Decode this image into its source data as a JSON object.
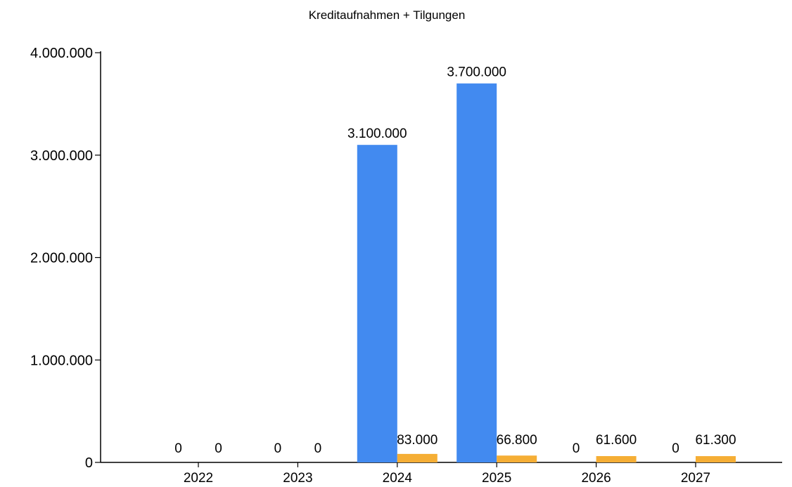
{
  "chart_data": {
    "type": "bar",
    "title": "Kreditaufnahmen + Tilgungen",
    "xlabel": "",
    "ylabel": "",
    "categories": [
      "2022",
      "2023",
      "2024",
      "2025",
      "2026",
      "2027"
    ],
    "series": [
      {
        "values": [
          0,
          0,
          3100000,
          3700000,
          0,
          0
        ],
        "color": "#428AF0"
      },
      {
        "values": [
          0,
          0,
          83000,
          66800,
          61600,
          61300
        ],
        "color": "#F5AE35"
      }
    ],
    "data_labels": [
      [
        "0",
        "0",
        "3.100.000",
        "3.700.000",
        "0",
        "0"
      ],
      [
        "0",
        "0",
        "83.000",
        "66.800",
        "61.600",
        "61.300"
      ]
    ],
    "ylim": [
      0,
      4000000
    ],
    "yticks": [
      0,
      1000000,
      2000000,
      3000000,
      4000000
    ],
    "ytick_labels": [
      "0",
      "1.000.000",
      "2.000.000",
      "3.000.000",
      "4.000.000"
    ],
    "grid": false,
    "legend": "none"
  }
}
